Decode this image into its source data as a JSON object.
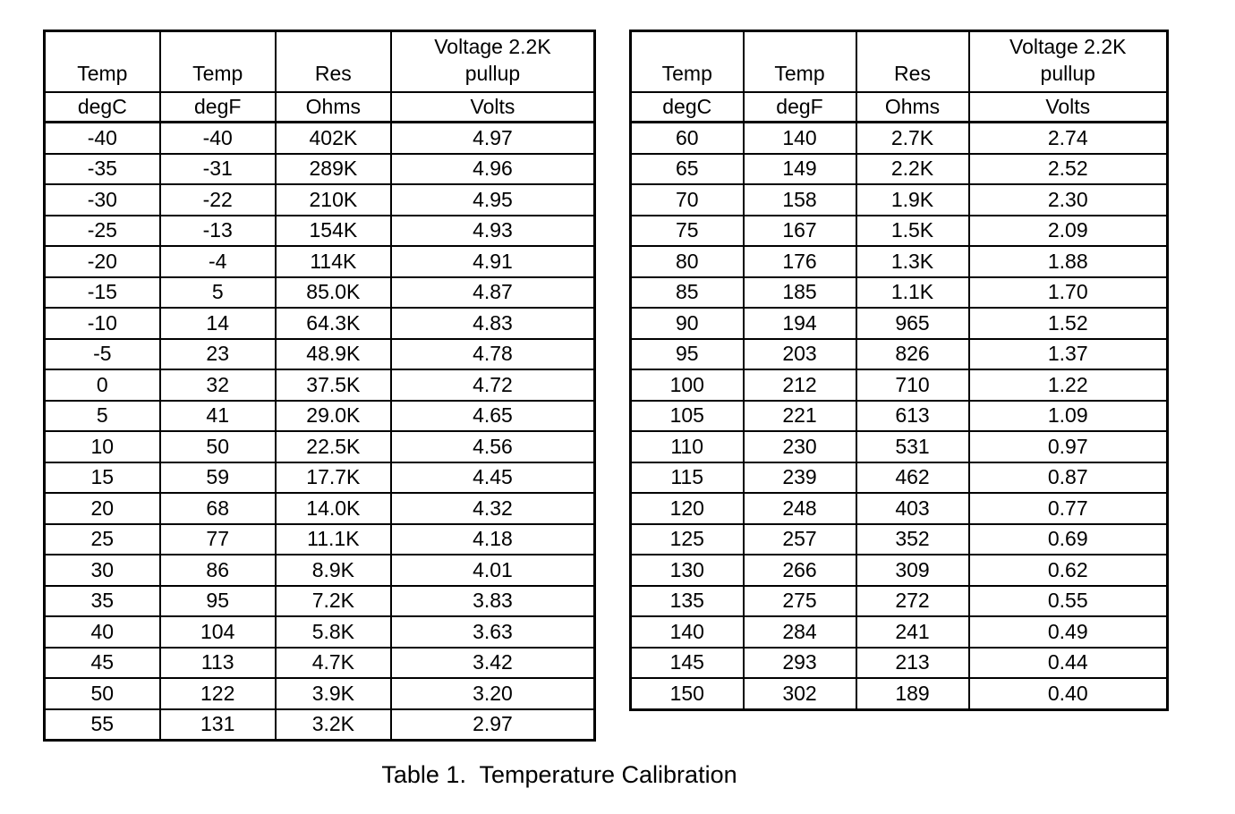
{
  "page": {
    "caption": "Table 1.  Temperature Calibration"
  },
  "tables": [
    {
      "name": "temperature-calibration-left",
      "header_row1": [
        "Temp",
        "Temp",
        "Res",
        "Voltage 2.2K\npullup"
      ],
      "header_row2": [
        "degC",
        "degF",
        "Ohms",
        "Volts"
      ],
      "rows": [
        [
          "-40",
          "-40",
          "402K",
          "4.97"
        ],
        [
          "-35",
          "-31",
          "289K",
          "4.96"
        ],
        [
          "-30",
          "-22",
          "210K",
          "4.95"
        ],
        [
          "-25",
          "-13",
          "154K",
          "4.93"
        ],
        [
          "-20",
          "-4",
          "114K",
          "4.91"
        ],
        [
          "-15",
          "5",
          "85.0K",
          "4.87"
        ],
        [
          "-10",
          "14",
          "64.3K",
          "4.83"
        ],
        [
          "-5",
          "23",
          "48.9K",
          "4.78"
        ],
        [
          "0",
          "32",
          "37.5K",
          "4.72"
        ],
        [
          "5",
          "41",
          "29.0K",
          "4.65"
        ],
        [
          "10",
          "50",
          "22.5K",
          "4.56"
        ],
        [
          "15",
          "59",
          "17.7K",
          "4.45"
        ],
        [
          "20",
          "68",
          "14.0K",
          "4.32"
        ],
        [
          "25",
          "77",
          "11.1K",
          "4.18"
        ],
        [
          "30",
          "86",
          "8.9K",
          "4.01"
        ],
        [
          "35",
          "95",
          "7.2K",
          "3.83"
        ],
        [
          "40",
          "104",
          "5.8K",
          "3.63"
        ],
        [
          "45",
          "113",
          "4.7K",
          "3.42"
        ],
        [
          "50",
          "122",
          "3.9K",
          "3.20"
        ],
        [
          "55",
          "131",
          "3.2K",
          "2.97"
        ]
      ]
    },
    {
      "name": "temperature-calibration-right",
      "header_row1": [
        "Temp",
        "Temp",
        "Res",
        "Voltage 2.2K\npullup"
      ],
      "header_row2": [
        "degC",
        "degF",
        "Ohms",
        "Volts"
      ],
      "rows": [
        [
          "60",
          "140",
          "2.7K",
          "2.74"
        ],
        [
          "65",
          "149",
          "2.2K",
          "2.52"
        ],
        [
          "70",
          "158",
          "1.9K",
          "2.30"
        ],
        [
          "75",
          "167",
          "1.5K",
          "2.09"
        ],
        [
          "80",
          "176",
          "1.3K",
          "1.88"
        ],
        [
          "85",
          "185",
          "1.1K",
          "1.70"
        ],
        [
          "90",
          "194",
          "965",
          "1.52"
        ],
        [
          "95",
          "203",
          "826",
          "1.37"
        ],
        [
          "100",
          "212",
          "710",
          "1.22"
        ],
        [
          "105",
          "221",
          "613",
          "1.09"
        ],
        [
          "110",
          "230",
          "531",
          "0.97"
        ],
        [
          "115",
          "239",
          "462",
          "0.87"
        ],
        [
          "120",
          "248",
          "403",
          "0.77"
        ],
        [
          "125",
          "257",
          "352",
          "0.69"
        ],
        [
          "130",
          "266",
          "309",
          "0.62"
        ],
        [
          "135",
          "275",
          "272",
          "0.55"
        ],
        [
          "140",
          "284",
          "241",
          "0.49"
        ],
        [
          "145",
          "293",
          "213",
          "0.44"
        ],
        [
          "150",
          "302",
          "189",
          "0.40"
        ]
      ]
    }
  ]
}
